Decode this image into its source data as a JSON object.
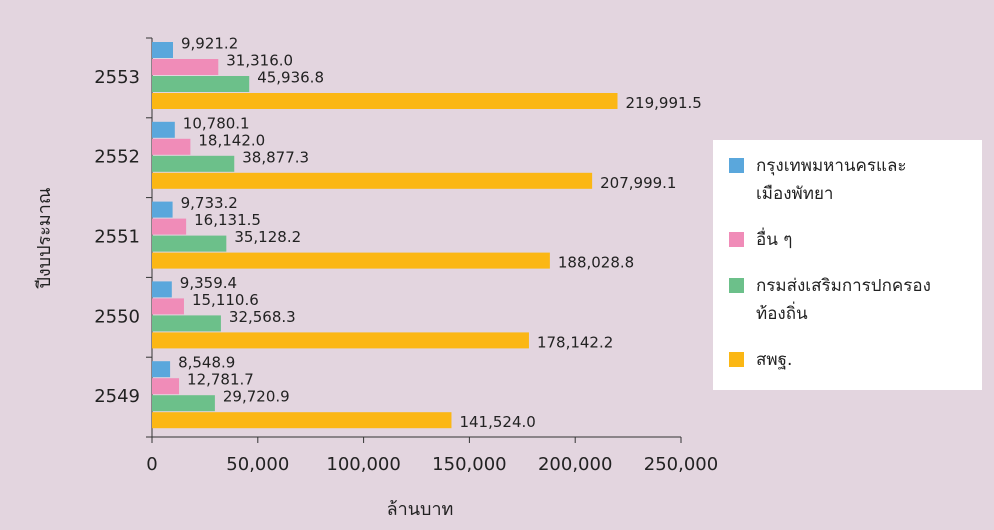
{
  "chart_data": {
    "type": "bar",
    "orientation": "horizontal",
    "xlabel": "ล้านบาท",
    "ylabel": "ปีงบประมาณ",
    "categories": [
      "2553",
      "2552",
      "2551",
      "2550",
      "2549"
    ],
    "series": [
      {
        "name": "กรุงเทพมหานครและ\nเมืองพัทยา",
        "color": "#5aa7dc",
        "values": [
          9921.2,
          10780.1,
          9733.2,
          9359.4,
          8548.9
        ],
        "value_labels": [
          "9,921.2",
          "10,780.1",
          "9,733.2",
          "9,359.4",
          "8,548.9"
        ]
      },
      {
        "name": "อื่น ๆ",
        "color": "#f08cb8",
        "values": [
          31316.0,
          18142.0,
          16131.5,
          15110.6,
          12781.7
        ],
        "value_labels": [
          "31,316.0",
          "18,142.0",
          "16,131.5",
          "15,110.6",
          "12,781.7"
        ]
      },
      {
        "name": "กรมส่งเสริมการปกครอง\nท้องถิ่น",
        "color": "#6cc08a",
        "values": [
          45936.8,
          38877.3,
          35128.2,
          32568.3,
          29720.9
        ],
        "value_labels": [
          "45,936.8",
          "38,877.3",
          "35,128.2",
          "32,568.3",
          "29,720.9"
        ]
      },
      {
        "name": "สพฐ.",
        "color": "#fbb714",
        "values": [
          219991.5,
          207999.1,
          188028.8,
          178142.2,
          141524.0
        ],
        "value_labels": [
          "219,991.5",
          "207,999.1",
          "188,028.8",
          "178,142.2",
          "141,524.0"
        ]
      }
    ],
    "xlim": [
      0,
      250000
    ],
    "xticks": [
      0,
      {
        "value": 50000,
        "label": "50,000"
      },
      {
        "value": 100000,
        "label": "100,000"
      },
      {
        "value": 150000,
        "label": "150,000"
      },
      {
        "value": 200000,
        "label": "200,000"
      },
      {
        "value": 250000,
        "label": "250,000"
      }
    ],
    "grid": false,
    "legend": "right"
  }
}
